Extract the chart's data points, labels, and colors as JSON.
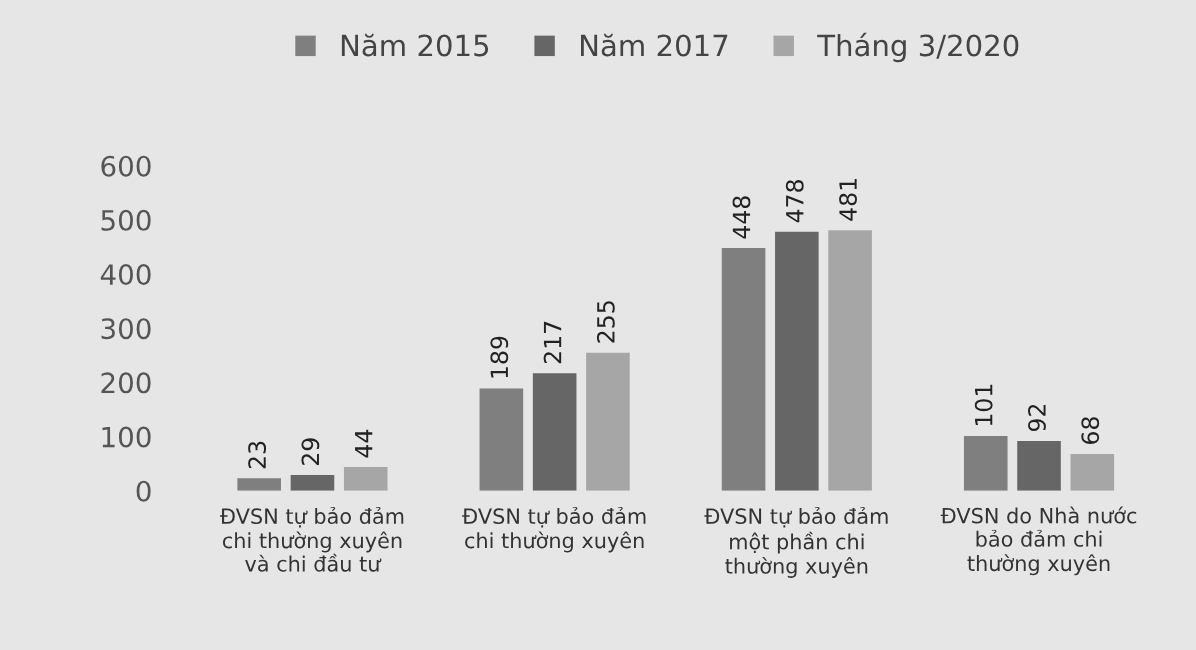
{
  "chart_data": {
    "type": "bar",
    "categories": [
      "ĐVSN tự bảo đảm chi thường xuyên và chi đầu tư",
      "ĐVSN tự bảo đảm chi thường xuyên",
      "ĐVSN tự bảo đảm một phần chi thường xuyên",
      "ĐVSN do Nhà nước bảo đảm chi thường xuyên"
    ],
    "series": [
      {
        "name": "Năm 2015",
        "color": "#7f7f7f",
        "values": [
          23,
          189,
          448,
          101
        ]
      },
      {
        "name": "Năm 2017",
        "color": "#666666",
        "values": [
          29,
          217,
          478,
          92
        ]
      },
      {
        "name": "Tháng 3/2020",
        "color": "#a6a6a6",
        "values": [
          44,
          255,
          481,
          68
        ]
      }
    ],
    "ylim": [
      0,
      600
    ],
    "yticks": [
      0,
      100,
      200,
      300,
      400,
      500,
      600
    ],
    "data_labels": true,
    "legend": "top",
    "grid": false
  }
}
